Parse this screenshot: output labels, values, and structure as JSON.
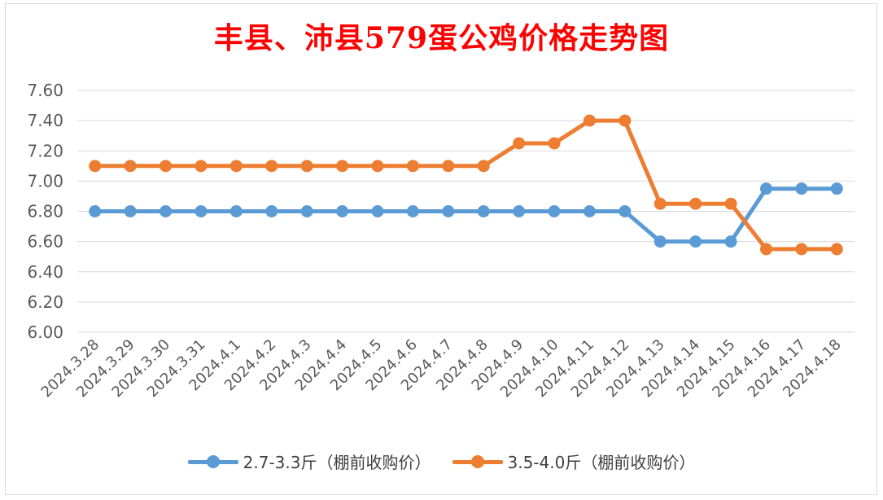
{
  "chart_data": {
    "type": "line",
    "title": "丰县、沛县579蛋公鸡价格走势图",
    "categories": [
      "2024.3.28",
      "2024.3.29",
      "2024.3.30",
      "2024.3.31",
      "2024.4.1",
      "2024.4.2",
      "2024.4.3",
      "2024.4.4",
      "2024.4.5",
      "2024.4.6",
      "2024.4.7",
      "2024.4.8",
      "2024.4.9",
      "2024.4.10",
      "2024.4.11",
      "2024.4.12",
      "2024.4.13",
      "2024.4.14",
      "2024.4.15",
      "2024.4.16",
      "2024.4.17",
      "2024.4.18"
    ],
    "series": [
      {
        "name": "2.7-3.3斤（棚前收购价）",
        "color": "#5b9bd5",
        "values": [
          6.8,
          6.8,
          6.8,
          6.8,
          6.8,
          6.8,
          6.8,
          6.8,
          6.8,
          6.8,
          6.8,
          6.8,
          6.8,
          6.8,
          6.8,
          6.8,
          6.6,
          6.6,
          6.6,
          6.95,
          6.95,
          6.95
        ]
      },
      {
        "name": "3.5-4.0斤（棚前收购价）",
        "color": "#ed7d31",
        "values": [
          7.1,
          7.1,
          7.1,
          7.1,
          7.1,
          7.1,
          7.1,
          7.1,
          7.1,
          7.1,
          7.1,
          7.1,
          7.25,
          7.25,
          7.4,
          7.4,
          6.85,
          6.85,
          6.85,
          6.55,
          6.55,
          6.55
        ]
      }
    ],
    "yticks": [
      "6.00",
      "6.20",
      "6.40",
      "6.60",
      "6.80",
      "7.00",
      "7.20",
      "7.40",
      "7.60"
    ],
    "ylim": [
      6.0,
      7.6
    ],
    "grid": true,
    "legend": "bottom"
  }
}
